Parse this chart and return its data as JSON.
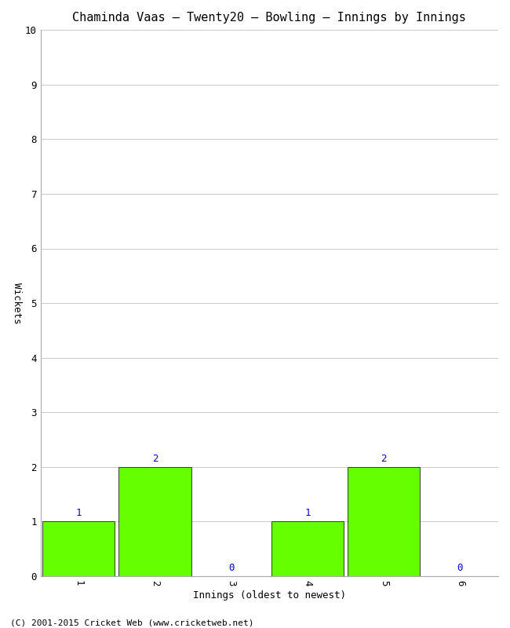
{
  "title": "Chaminda Vaas – Twenty20 – Bowling – Innings by Innings",
  "xlabel": "Innings (oldest to newest)",
  "ylabel": "Wickets",
  "categories": [
    "1",
    "2",
    "3",
    "4",
    "5",
    "6"
  ],
  "values": [
    1,
    2,
    0,
    1,
    2,
    0
  ],
  "bar_color": "#66ff00",
  "bar_edge_color": "#000000",
  "ylim": [
    0,
    10
  ],
  "xlim": [
    0.5,
    6.5
  ],
  "yticks": [
    0,
    1,
    2,
    3,
    4,
    5,
    6,
    7,
    8,
    9,
    10
  ],
  "background_color": "#ffffff",
  "plot_bg_color": "#ffffff",
  "label_color": "#0000cc",
  "footer": "(C) 2001-2015 Cricket Web (www.cricketweb.net)",
  "title_fontsize": 11,
  "axis_label_fontsize": 9,
  "tick_fontsize": 9,
  "annotation_fontsize": 9,
  "bar_width": 0.95
}
